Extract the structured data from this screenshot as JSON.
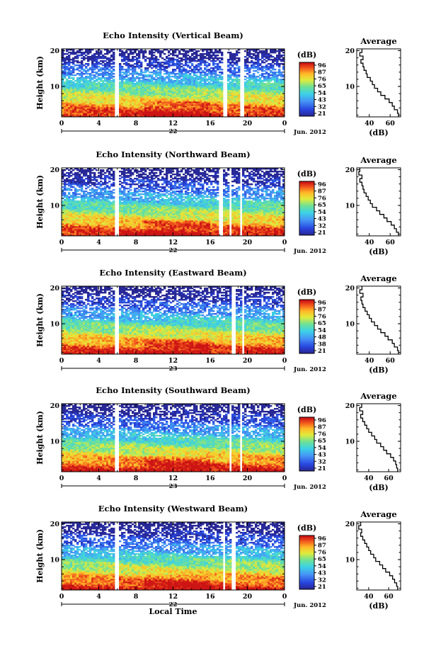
{
  "chart_data": [
    {
      "type": "heatmap",
      "title": "Echo Intensity (Vertical Beam)",
      "ylabel": "Height (km)",
      "y_ticks": [
        "20",
        "10"
      ],
      "ylim": [
        1.5,
        20.5
      ],
      "x_ticks": [
        "0",
        "4",
        "8",
        "12",
        "16",
        "20",
        "0"
      ],
      "xlim": [
        0,
        24
      ],
      "date_label": "22",
      "month_label": "Jun. 2012",
      "gaps": [
        [
          5.7,
          6.1
        ],
        [
          17.4,
          17.8
        ],
        [
          19.2,
          19.6
        ]
      ],
      "colorbar": {
        "unit": "(dB)",
        "labels": [
          "96",
          "87",
          "76",
          "65",
          "54",
          "43",
          "32",
          "21"
        ]
      },
      "profile": {
        "title": "Average",
        "xlabel": "(dB)",
        "x_ticks": [
          "40",
          "60"
        ],
        "xlim": [
          28,
          70
        ],
        "y_ticks": [
          "20",
          "10"
        ],
        "heights": [
          2,
          3,
          4,
          5,
          6,
          7,
          8,
          9,
          10,
          11,
          12,
          13,
          14,
          15,
          16,
          17,
          18,
          19,
          20
        ],
        "values": [
          68,
          67,
          64,
          62,
          59,
          55,
          51,
          48,
          45,
          43,
          41,
          38,
          37,
          35,
          34,
          32,
          34,
          31,
          33
        ]
      }
    },
    {
      "type": "heatmap",
      "title": "Echo Intensity (Northward Beam)",
      "ylabel": "Height (km)",
      "y_ticks": [
        "20",
        "10"
      ],
      "ylim": [
        1.5,
        20.5
      ],
      "x_ticks": [
        "0",
        "4",
        "8",
        "12",
        "16",
        "20",
        "0"
      ],
      "xlim": [
        0,
        24
      ],
      "date_label": "22",
      "month_label": "Jun. 2012",
      "gaps": [
        [
          5.7,
          6.1
        ],
        [
          16.9,
          17.3
        ],
        [
          18.0,
          18.3
        ],
        [
          19.2,
          19.5
        ]
      ],
      "colorbar": {
        "unit": "(dB)",
        "labels": [
          "96",
          "87",
          "76",
          "65",
          "54",
          "43",
          "32",
          "21"
        ]
      },
      "profile": {
        "title": "Average",
        "xlabel": "(dB)",
        "x_ticks": [
          "40",
          "60"
        ],
        "xlim": [
          28,
          70
        ],
        "y_ticks": [
          "20",
          "10"
        ],
        "heights": [
          2,
          3,
          4,
          5,
          6,
          7,
          8,
          9,
          10,
          11,
          12,
          13,
          14,
          15,
          16,
          17,
          18,
          19,
          20
        ],
        "values": [
          68,
          66,
          64,
          61,
          57,
          54,
          50,
          47,
          43,
          41,
          39,
          37,
          35,
          34,
          33,
          31,
          33,
          30,
          31
        ]
      }
    },
    {
      "type": "heatmap",
      "title": "Echo Intensity (Eastward Beam)",
      "ylabel": "Height (km)",
      "y_ticks": [
        "20",
        "10"
      ],
      "ylim": [
        1.5,
        20.5
      ],
      "x_ticks": [
        "0",
        "4",
        "8",
        "12",
        "16",
        "20",
        "0"
      ],
      "xlim": [
        0,
        24
      ],
      "date_label": "23",
      "month_label": "Jun. 2012",
      "gaps": [
        [
          5.7,
          6.1
        ],
        [
          18.4,
          18.8
        ],
        [
          19.4,
          19.7
        ]
      ],
      "colorbar": {
        "unit": "(dB)",
        "labels": [
          "96",
          "87",
          "76",
          "65",
          "54",
          "48",
          "38",
          "21"
        ]
      },
      "profile": {
        "title": "Average",
        "xlabel": "(dB)",
        "x_ticks": [
          "40",
          "60"
        ],
        "xlim": [
          28,
          70
        ],
        "y_ticks": [
          "20",
          "10"
        ],
        "heights": [
          2,
          3,
          4,
          5,
          6,
          7,
          8,
          9,
          10,
          11,
          12,
          13,
          14,
          15,
          16,
          17,
          18,
          19,
          20
        ],
        "values": [
          68,
          67,
          64,
          62,
          58,
          55,
          51,
          48,
          45,
          42,
          40,
          38,
          36,
          34,
          33,
          32,
          34,
          31,
          33
        ]
      }
    },
    {
      "type": "heatmap",
      "title": "Echo Intensity (Southward Beam)",
      "ylabel": "Height (km)",
      "y_ticks": [
        "20",
        "10"
      ],
      "ylim": [
        1.5,
        20.5
      ],
      "x_ticks": [
        "0",
        "4",
        "8",
        "12",
        "16",
        "20",
        "0"
      ],
      "xlim": [
        0,
        24
      ],
      "date_label": "23",
      "month_label": "Jun. 2012",
      "gaps": [
        [
          5.7,
          6.1
        ],
        [
          18.1,
          18.4
        ],
        [
          19.2,
          19.5
        ]
      ],
      "colorbar": {
        "unit": "(dB)",
        "labels": [
          "96",
          "87",
          "76",
          "65",
          "54",
          "43",
          "32",
          "21"
        ]
      },
      "profile": {
        "title": "Average",
        "xlabel": "(dB)",
        "x_ticks": [
          "40",
          "60"
        ],
        "xlim": [
          28,
          72
        ],
        "y_ticks": [
          "20",
          "10"
        ],
        "heights": [
          2,
          3,
          4,
          5,
          6,
          7,
          8,
          9,
          10,
          11,
          12,
          13,
          14,
          15,
          16,
          17,
          18,
          19,
          20
        ],
        "values": [
          69,
          68,
          67,
          65,
          62,
          58,
          55,
          52,
          48,
          46,
          43,
          40,
          38,
          36,
          34,
          32,
          34,
          31,
          33
        ]
      }
    },
    {
      "type": "heatmap",
      "title": "Echo Intensity (Westward Beam)",
      "ylabel": "Height (km)",
      "y_ticks": [
        "20",
        "10"
      ],
      "ylim": [
        1.5,
        20.5
      ],
      "x_ticks": [
        "0",
        "4",
        "8",
        "12",
        "16",
        "20",
        "0"
      ],
      "xlim": [
        0,
        24
      ],
      "date_label": "22",
      "xlabel": "Local Time",
      "month_label": "Jun. 2012",
      "gaps": [
        [
          5.7,
          6.1
        ],
        [
          17.3,
          17.6
        ],
        [
          18.4,
          18.8
        ]
      ],
      "colorbar": {
        "unit": "(dB)",
        "labels": [
          "96",
          "87",
          "76",
          "65",
          "54",
          "43",
          "32",
          "21"
        ]
      },
      "profile": {
        "title": "Average",
        "xlabel": "(dB)",
        "x_ticks": [
          "40",
          "60"
        ],
        "xlim": [
          28,
          72
        ],
        "y_ticks": [
          "20",
          "10"
        ],
        "heights": [
          2,
          3,
          4,
          5,
          6,
          7,
          8,
          9,
          10,
          11,
          12,
          13,
          14,
          15,
          16,
          17,
          18,
          19,
          20
        ],
        "values": [
          69,
          68,
          66,
          64,
          61,
          57,
          54,
          51,
          47,
          45,
          42,
          40,
          38,
          36,
          34,
          32,
          33,
          30,
          32
        ]
      }
    }
  ]
}
